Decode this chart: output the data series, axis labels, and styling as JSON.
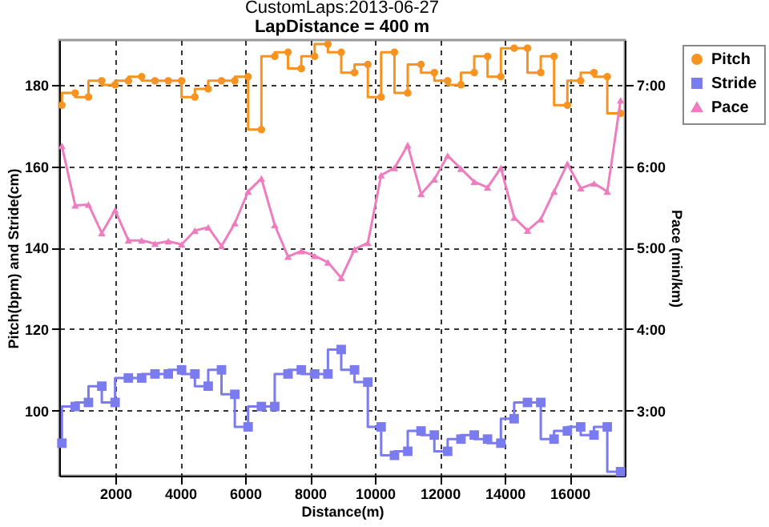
{
  "chart_data": {
    "type": "line",
    "title": "CustomLaps:2013-06-27",
    "subtitle": "LapDistance = 400 m",
    "xlabel": "Distance(m)",
    "ylabel": "Pitch(bpm) and Stride(cm)",
    "y2label": "Pace (min/km)",
    "x": [
      350,
      760,
      1170,
      1580,
      1990,
      2400,
      2810,
      3220,
      3630,
      4040,
      4450,
      4860,
      5270,
      5680,
      6090,
      6500,
      6910,
      7320,
      7730,
      8140,
      8550,
      8960,
      9370,
      9780,
      10190,
      10600,
      11010,
      11420,
      11830,
      12240,
      12650,
      13060,
      13470,
      13880,
      14290,
      14700,
      15110,
      15520,
      15930,
      16340,
      16750,
      17160,
      17570
    ],
    "xlim": [
      270,
      17700
    ],
    "xticks": [
      2000,
      4000,
      6000,
      8000,
      10000,
      12000,
      14000,
      16000
    ],
    "ylim": [
      84,
      191
    ],
    "yticks": [
      100,
      120,
      140,
      160,
      180
    ],
    "y2lim": [
      2.2,
      7.55
    ],
    "y2ticks": [
      {
        "value": 3,
        "label": "3:00"
      },
      {
        "value": 4,
        "label": "4:00"
      },
      {
        "value": 5,
        "label": "5:00"
      },
      {
        "value": 6,
        "label": "6:00"
      },
      {
        "value": 7,
        "label": "7:00"
      }
    ],
    "grid": true,
    "legend": "top right",
    "line_style": "solid",
    "series": [
      {
        "name": "Pitch",
        "type": "step",
        "marker": "circle",
        "color": "#f7931e",
        "values": [
          175,
          178,
          177,
          181,
          180,
          181,
          182,
          181,
          181,
          181,
          177,
          179,
          181,
          181,
          182,
          169,
          187,
          188,
          184,
          187,
          190,
          188,
          183,
          185,
          177,
          188,
          178,
          185,
          183,
          181,
          180,
          183,
          187,
          182,
          189,
          189,
          183,
          187,
          175,
          181,
          183,
          182,
          173
        ]
      },
      {
        "name": "Stride",
        "type": "step",
        "marker": "square",
        "color": "#7b7bf0",
        "values": [
          92,
          101,
          102,
          106,
          102,
          108,
          108,
          109,
          109,
          110,
          109,
          106,
          110,
          104,
          96,
          101,
          101,
          109,
          110,
          109,
          109,
          115,
          110,
          107,
          96,
          89,
          90,
          95,
          94,
          90,
          93,
          94,
          93,
          92,
          98,
          102,
          102,
          93,
          95,
          96,
          94,
          96,
          85
        ]
      },
      {
        "name": "Pace",
        "type": "line",
        "marker": "triangle",
        "axis": "y2",
        "color": "#f07cc0",
        "values": [
          6.25,
          5.52,
          5.53,
          5.18,
          5.46,
          5.09,
          5.09,
          5.05,
          5.08,
          5.04,
          5.21,
          5.25,
          5.02,
          5.3,
          5.69,
          5.85,
          5.28,
          4.89,
          4.96,
          4.9,
          4.82,
          4.63,
          4.98,
          5.06,
          5.89,
          5.98,
          6.26,
          5.66,
          5.84,
          6.13,
          5.97,
          5.81,
          5.74,
          5.98,
          5.37,
          5.21,
          5.35,
          5.69,
          6.03,
          5.73,
          5.79,
          5.69,
          6.81
        ]
      }
    ]
  }
}
